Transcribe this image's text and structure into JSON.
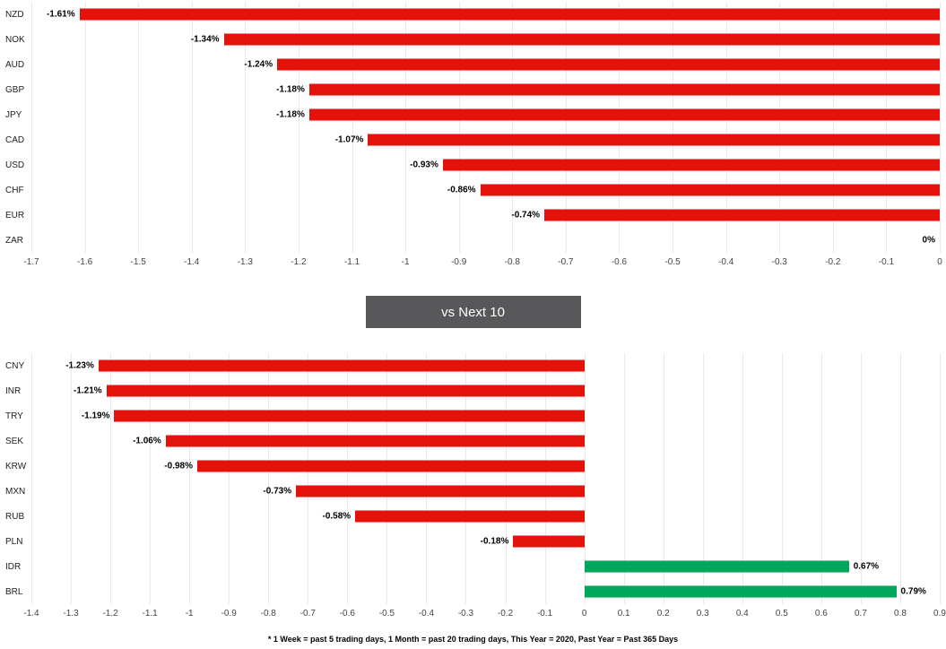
{
  "banner": {
    "label": "vs Next 10"
  },
  "footnote": "* 1 Week = past 5 trading days, 1 Month = past 20 trading days, This Year = 2020, Past Year = Past 365 Days",
  "colors": {
    "negative_bar": "#e3120b",
    "positive_bar": "#00a65a",
    "gridline": "#e9e9e9",
    "axis_text": "#444444",
    "category_text": "#222222",
    "value_text": "#000000",
    "banner_bg": "#58585a",
    "banner_text": "#ffffff"
  },
  "chart_data": [
    {
      "type": "bar",
      "orientation": "horizontal",
      "title": "",
      "categories": [
        "NZD",
        "NOK",
        "AUD",
        "GBP",
        "JPY",
        "CAD",
        "USD",
        "CHF",
        "EUR",
        "ZAR"
      ],
      "values": [
        -1.61,
        -1.34,
        -1.24,
        -1.18,
        -1.18,
        -1.07,
        -0.93,
        -0.86,
        -0.74,
        0
      ],
      "value_labels": [
        "-1.61%",
        "-1.34%",
        "-1.24%",
        "-1.18%",
        "-1.18%",
        "-1.07%",
        "-0.93%",
        "-0.86%",
        "-0.74%",
        "0%"
      ],
      "xlim": [
        -1.7,
        0
      ],
      "ticks": [
        -1.7,
        -1.6,
        -1.5,
        -1.4,
        -1.3,
        -1.2,
        -1.1,
        -1,
        -0.9,
        -0.8,
        -0.7,
        -0.6,
        -0.5,
        -0.4,
        -0.3,
        -0.2,
        -0.1,
        0
      ],
      "grid": true,
      "legend": false
    },
    {
      "type": "bar",
      "orientation": "horizontal",
      "title": "",
      "categories": [
        "CNY",
        "INR",
        "TRY",
        "SEK",
        "KRW",
        "MXN",
        "RUB",
        "PLN",
        "IDR",
        "BRL"
      ],
      "values": [
        -1.23,
        -1.21,
        -1.19,
        -1.06,
        -0.98,
        -0.73,
        -0.58,
        -0.18,
        0.67,
        0.79
      ],
      "value_labels": [
        "-1.23%",
        "-1.21%",
        "-1.19%",
        "-1.06%",
        "-0.98%",
        "-0.73%",
        "-0.58%",
        "-0.18%",
        "0.67%",
        "0.79%"
      ],
      "xlim": [
        -1.4,
        0.9
      ],
      "ticks": [
        -1.4,
        -1.3,
        -1.2,
        -1.1,
        -1,
        -0.9,
        -0.8,
        -0.7,
        -0.6,
        -0.5,
        -0.4,
        -0.3,
        -0.2,
        -0.1,
        0,
        0.1,
        0.2,
        0.3,
        0.4,
        0.5,
        0.6,
        0.7,
        0.8,
        0.9
      ],
      "grid": true,
      "legend": false
    }
  ]
}
